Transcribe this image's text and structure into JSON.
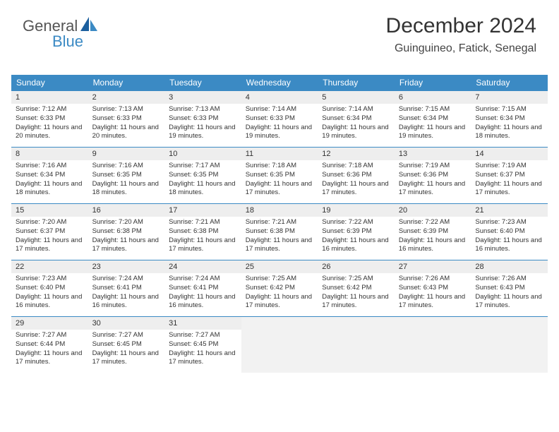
{
  "brand": {
    "part1": "General",
    "part2": "Blue"
  },
  "header": {
    "month_title": "December 2024",
    "location": "Guinguineo, Fatick, Senegal"
  },
  "styling": {
    "header_bg": "#3b8ac4",
    "header_text": "#ffffff",
    "daynum_bg": "#eeeeee",
    "cell_border": "#3b8ac4",
    "empty_bg": "#f2f2f2",
    "body_text": "#333333",
    "font_family": "Arial",
    "title_fontsize": 30,
    "location_fontsize": 16,
    "dayhead_fontsize": 12,
    "cell_fontsize": 9.5
  },
  "calendar": {
    "day_names": [
      "Sunday",
      "Monday",
      "Tuesday",
      "Wednesday",
      "Thursday",
      "Friday",
      "Saturday"
    ],
    "days": [
      {
        "n": "1",
        "sunrise": "7:12 AM",
        "sunset": "6:33 PM",
        "daylight": "11 hours and 20 minutes."
      },
      {
        "n": "2",
        "sunrise": "7:13 AM",
        "sunset": "6:33 PM",
        "daylight": "11 hours and 20 minutes."
      },
      {
        "n": "3",
        "sunrise": "7:13 AM",
        "sunset": "6:33 PM",
        "daylight": "11 hours and 19 minutes."
      },
      {
        "n": "4",
        "sunrise": "7:14 AM",
        "sunset": "6:33 PM",
        "daylight": "11 hours and 19 minutes."
      },
      {
        "n": "5",
        "sunrise": "7:14 AM",
        "sunset": "6:34 PM",
        "daylight": "11 hours and 19 minutes."
      },
      {
        "n": "6",
        "sunrise": "7:15 AM",
        "sunset": "6:34 PM",
        "daylight": "11 hours and 19 minutes."
      },
      {
        "n": "7",
        "sunrise": "7:15 AM",
        "sunset": "6:34 PM",
        "daylight": "11 hours and 18 minutes."
      },
      {
        "n": "8",
        "sunrise": "7:16 AM",
        "sunset": "6:34 PM",
        "daylight": "11 hours and 18 minutes."
      },
      {
        "n": "9",
        "sunrise": "7:16 AM",
        "sunset": "6:35 PM",
        "daylight": "11 hours and 18 minutes."
      },
      {
        "n": "10",
        "sunrise": "7:17 AM",
        "sunset": "6:35 PM",
        "daylight": "11 hours and 18 minutes."
      },
      {
        "n": "11",
        "sunrise": "7:18 AM",
        "sunset": "6:35 PM",
        "daylight": "11 hours and 17 minutes."
      },
      {
        "n": "12",
        "sunrise": "7:18 AM",
        "sunset": "6:36 PM",
        "daylight": "11 hours and 17 minutes."
      },
      {
        "n": "13",
        "sunrise": "7:19 AM",
        "sunset": "6:36 PM",
        "daylight": "11 hours and 17 minutes."
      },
      {
        "n": "14",
        "sunrise": "7:19 AM",
        "sunset": "6:37 PM",
        "daylight": "11 hours and 17 minutes."
      },
      {
        "n": "15",
        "sunrise": "7:20 AM",
        "sunset": "6:37 PM",
        "daylight": "11 hours and 17 minutes."
      },
      {
        "n": "16",
        "sunrise": "7:20 AM",
        "sunset": "6:38 PM",
        "daylight": "11 hours and 17 minutes."
      },
      {
        "n": "17",
        "sunrise": "7:21 AM",
        "sunset": "6:38 PM",
        "daylight": "11 hours and 17 minutes."
      },
      {
        "n": "18",
        "sunrise": "7:21 AM",
        "sunset": "6:38 PM",
        "daylight": "11 hours and 17 minutes."
      },
      {
        "n": "19",
        "sunrise": "7:22 AM",
        "sunset": "6:39 PM",
        "daylight": "11 hours and 16 minutes."
      },
      {
        "n": "20",
        "sunrise": "7:22 AM",
        "sunset": "6:39 PM",
        "daylight": "11 hours and 16 minutes."
      },
      {
        "n": "21",
        "sunrise": "7:23 AM",
        "sunset": "6:40 PM",
        "daylight": "11 hours and 16 minutes."
      },
      {
        "n": "22",
        "sunrise": "7:23 AM",
        "sunset": "6:40 PM",
        "daylight": "11 hours and 16 minutes."
      },
      {
        "n": "23",
        "sunrise": "7:24 AM",
        "sunset": "6:41 PM",
        "daylight": "11 hours and 16 minutes."
      },
      {
        "n": "24",
        "sunrise": "7:24 AM",
        "sunset": "6:41 PM",
        "daylight": "11 hours and 16 minutes."
      },
      {
        "n": "25",
        "sunrise": "7:25 AM",
        "sunset": "6:42 PM",
        "daylight": "11 hours and 17 minutes."
      },
      {
        "n": "26",
        "sunrise": "7:25 AM",
        "sunset": "6:42 PM",
        "daylight": "11 hours and 17 minutes."
      },
      {
        "n": "27",
        "sunrise": "7:26 AM",
        "sunset": "6:43 PM",
        "daylight": "11 hours and 17 minutes."
      },
      {
        "n": "28",
        "sunrise": "7:26 AM",
        "sunset": "6:43 PM",
        "daylight": "11 hours and 17 minutes."
      },
      {
        "n": "29",
        "sunrise": "7:27 AM",
        "sunset": "6:44 PM",
        "daylight": "11 hours and 17 minutes."
      },
      {
        "n": "30",
        "sunrise": "7:27 AM",
        "sunset": "6:45 PM",
        "daylight": "11 hours and 17 minutes."
      },
      {
        "n": "31",
        "sunrise": "7:27 AM",
        "sunset": "6:45 PM",
        "daylight": "11 hours and 17 minutes."
      }
    ],
    "trailing_empty": 4
  },
  "labels": {
    "sunrise_prefix": "Sunrise: ",
    "sunset_prefix": "Sunset: ",
    "daylight_prefix": "Daylight: "
  }
}
